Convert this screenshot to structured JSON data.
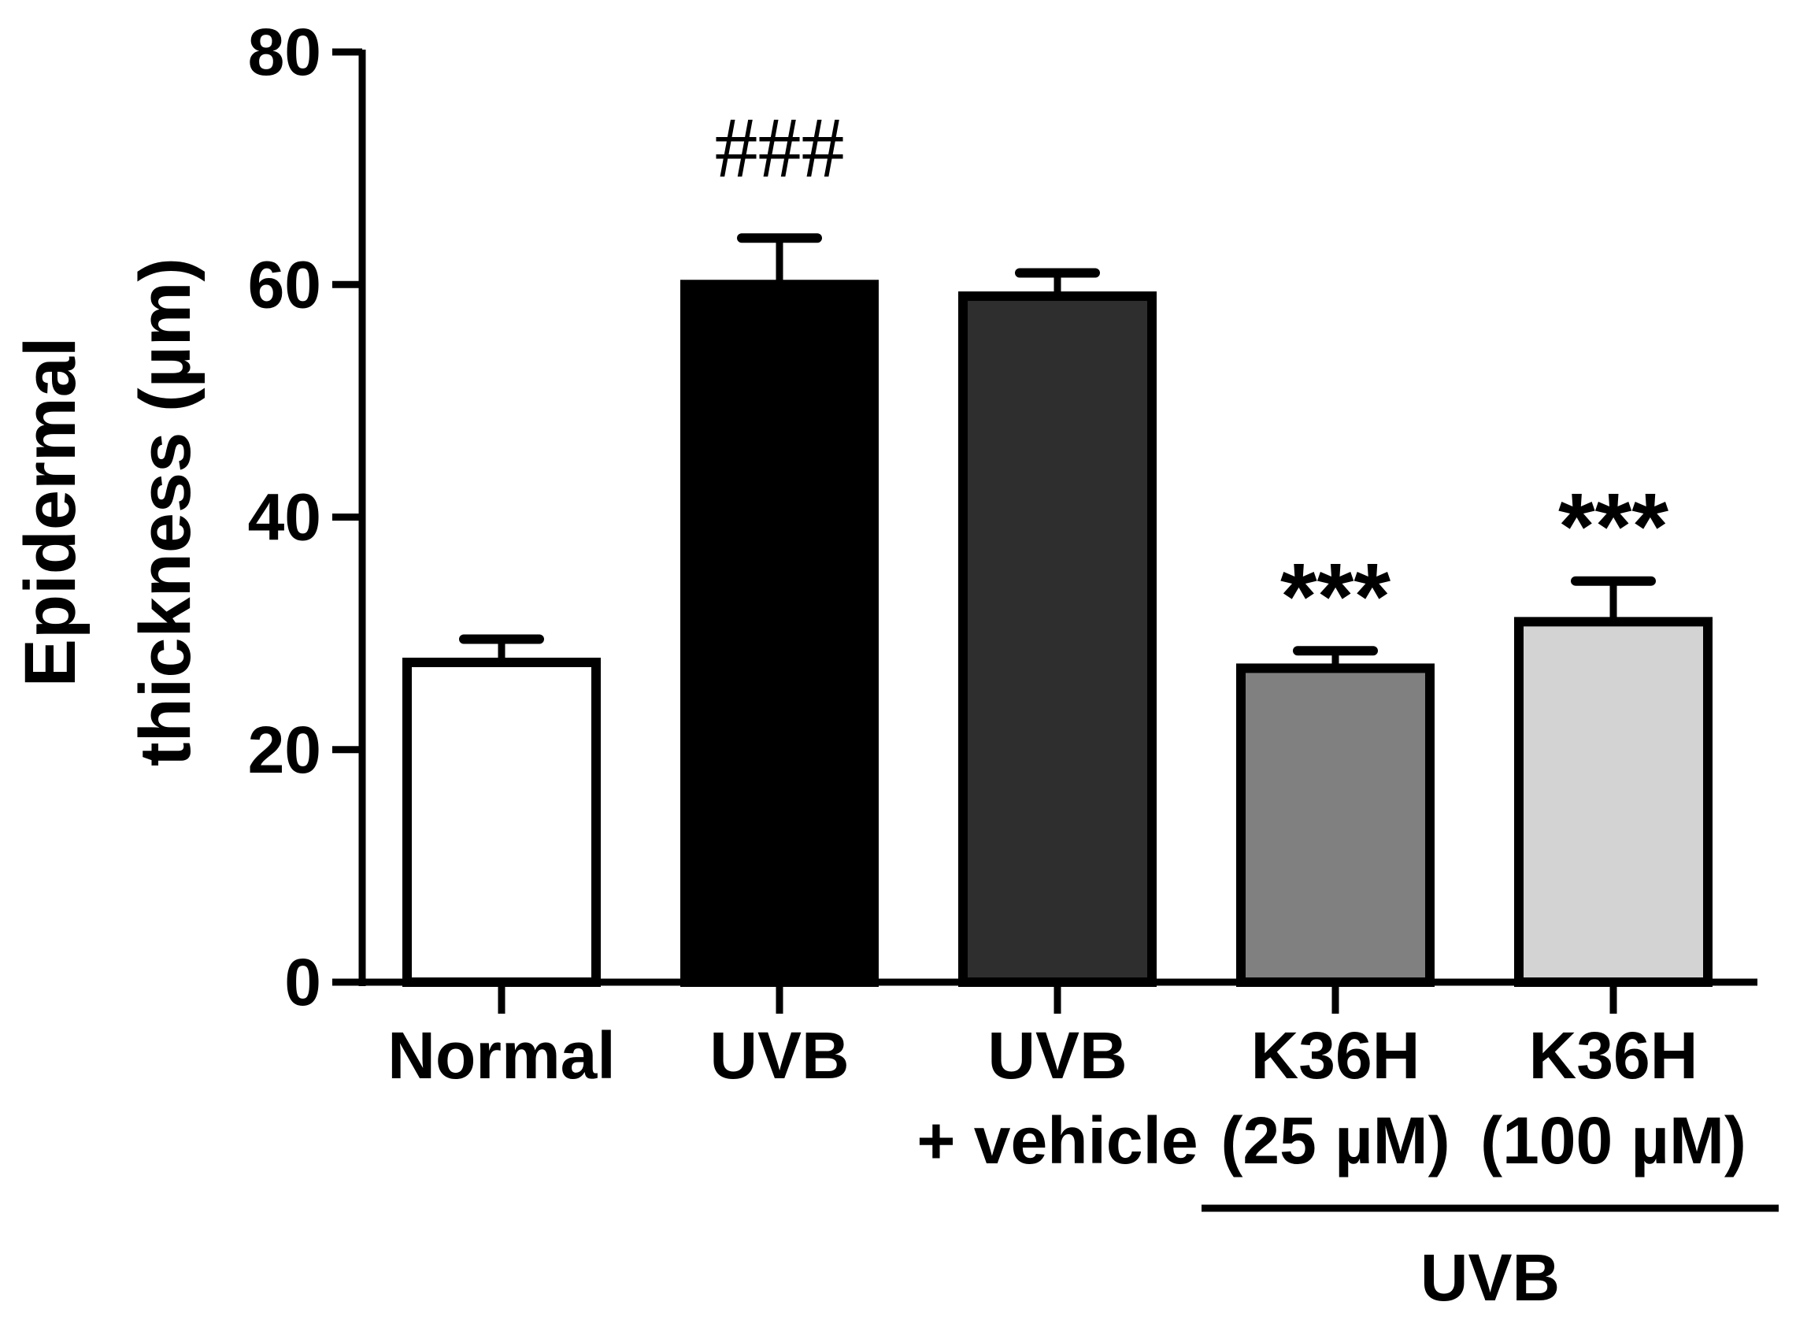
{
  "chart_data": {
    "type": "bar",
    "title": "",
    "ylabel": "Epidermal thickness (µm)",
    "ylabel_lines": [
      "Epidermal",
      "thickness (µm)"
    ],
    "xlabel": "",
    "ylim": [
      0,
      80
    ],
    "yticks": [
      0,
      20,
      40,
      60,
      80
    ],
    "grid": false,
    "legend": "none",
    "categories": [
      "Normal",
      "UVB",
      "UVB + vehicle",
      "K36H (25 µM)",
      "K36H (100 µM)"
    ],
    "category_lines": [
      [
        "Normal"
      ],
      [
        "UVB"
      ],
      [
        "UVB",
        "+ vehicle"
      ],
      [
        "K36H",
        "(25 µM)"
      ],
      [
        "K36H",
        "(100 µM)"
      ]
    ],
    "values": [
      27.5,
      60,
      59,
      27,
      31
    ],
    "errors": [
      2,
      4,
      2,
      1.5,
      3.5
    ],
    "colors": [
      "#ffffff",
      "#000000",
      "#2e2e2e",
      "#808080",
      "#d3d3d3"
    ],
    "annotations": [
      "",
      "###",
      "",
      "***",
      "***"
    ],
    "group_bracket": {
      "label": "UVB",
      "from_index": 3,
      "to_index": 4
    }
  }
}
